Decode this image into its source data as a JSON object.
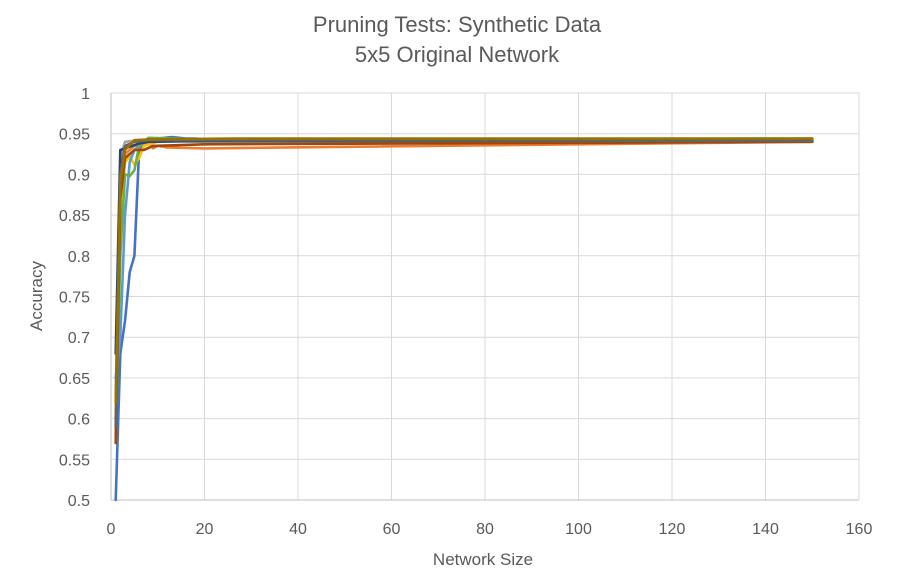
{
  "chart_data": {
    "type": "line",
    "title": "Pruning Tests: Synthetic Data",
    "subtitle": "5x5 Original Network",
    "xlabel": "Network Size",
    "ylabel": "Accuracy",
    "xlim": [
      0,
      160
    ],
    "ylim": [
      0.5,
      1
    ],
    "xticks": [
      0,
      20,
      40,
      60,
      80,
      100,
      120,
      140,
      160
    ],
    "yticks": [
      0.5,
      0.55,
      0.6,
      0.65,
      0.7,
      0.75,
      0.8,
      0.85,
      0.9,
      0.95,
      1
    ],
    "ytick_labels": [
      "0.5",
      "0.55",
      "0.6",
      "0.65",
      "0.7",
      "0.75",
      "0.8",
      "0.85",
      "0.9",
      "0.95",
      "1"
    ],
    "grid": true,
    "legend": "none",
    "series": [
      {
        "color": "#4472C4",
        "points": [
          [
            1,
            0.5
          ],
          [
            2,
            0.68
          ],
          [
            3,
            0.72
          ],
          [
            4,
            0.78
          ],
          [
            5,
            0.8
          ],
          [
            6,
            0.93
          ],
          [
            8,
            0.942
          ],
          [
            10,
            0.944
          ],
          [
            13,
            0.946
          ],
          [
            16,
            0.944
          ],
          [
            18,
            0.944
          ],
          [
            20,
            0.943
          ],
          [
            150,
            0.942
          ]
        ]
      },
      {
        "color": "#ED7D31",
        "points": [
          [
            1,
            0.6
          ],
          [
            2,
            0.88
          ],
          [
            3,
            0.925
          ],
          [
            5,
            0.935
          ],
          [
            8,
            0.94
          ],
          [
            9,
            0.932
          ],
          [
            10,
            0.935
          ],
          [
            12,
            0.933
          ],
          [
            20,
            0.932
          ],
          [
            150,
            0.94
          ]
        ]
      },
      {
        "color": "#A5A5A5",
        "points": [
          [
            1,
            0.63
          ],
          [
            2,
            0.92
          ],
          [
            3,
            0.94
          ],
          [
            6,
            0.942
          ],
          [
            20,
            0.94
          ],
          [
            150,
            0.942
          ]
        ]
      },
      {
        "color": "#FFC000",
        "points": [
          [
            1,
            0.6
          ],
          [
            2,
            0.84
          ],
          [
            3,
            0.915
          ],
          [
            4,
            0.922
          ],
          [
            5,
            0.912
          ],
          [
            6,
            0.92
          ],
          [
            7,
            0.935
          ],
          [
            10,
            0.94
          ],
          [
            20,
            0.942
          ],
          [
            150,
            0.943
          ]
        ]
      },
      {
        "color": "#5B9BD5",
        "points": [
          [
            1,
            0.65
          ],
          [
            2,
            0.7
          ],
          [
            3,
            0.85
          ],
          [
            4,
            0.915
          ],
          [
            5,
            0.93
          ],
          [
            7,
            0.94
          ],
          [
            20,
            0.942
          ],
          [
            150,
            0.942
          ]
        ]
      },
      {
        "color": "#70AD47",
        "points": [
          [
            1,
            0.58
          ],
          [
            2,
            0.8
          ],
          [
            3,
            0.9
          ],
          [
            4,
            0.898
          ],
          [
            5,
            0.905
          ],
          [
            6,
            0.935
          ],
          [
            8,
            0.945
          ],
          [
            20,
            0.943
          ],
          [
            150,
            0.944
          ]
        ]
      },
      {
        "color": "#264478",
        "points": [
          [
            1,
            0.68
          ],
          [
            2,
            0.93
          ],
          [
            4,
            0.934
          ],
          [
            6,
            0.938
          ],
          [
            8,
            0.94
          ],
          [
            20,
            0.941
          ],
          [
            150,
            0.941
          ]
        ]
      },
      {
        "color": "#9E480E",
        "points": [
          [
            1,
            0.57
          ],
          [
            2,
            0.87
          ],
          [
            3,
            0.92
          ],
          [
            5,
            0.93
          ],
          [
            7,
            0.93
          ],
          [
            9,
            0.935
          ],
          [
            20,
            0.937
          ],
          [
            150,
            0.94
          ]
        ]
      },
      {
        "color": "#636363",
        "points": [
          [
            1,
            0.59
          ],
          [
            2,
            0.9
          ],
          [
            3,
            0.935
          ],
          [
            5,
            0.94
          ],
          [
            8,
            0.942
          ],
          [
            20,
            0.942
          ],
          [
            150,
            0.941
          ]
        ]
      },
      {
        "color": "#997300",
        "points": [
          [
            1,
            0.62
          ],
          [
            2,
            0.89
          ],
          [
            3,
            0.93
          ],
          [
            5,
            0.942
          ],
          [
            8,
            0.943
          ],
          [
            26,
            0.944
          ],
          [
            150,
            0.944
          ]
        ]
      }
    ]
  }
}
